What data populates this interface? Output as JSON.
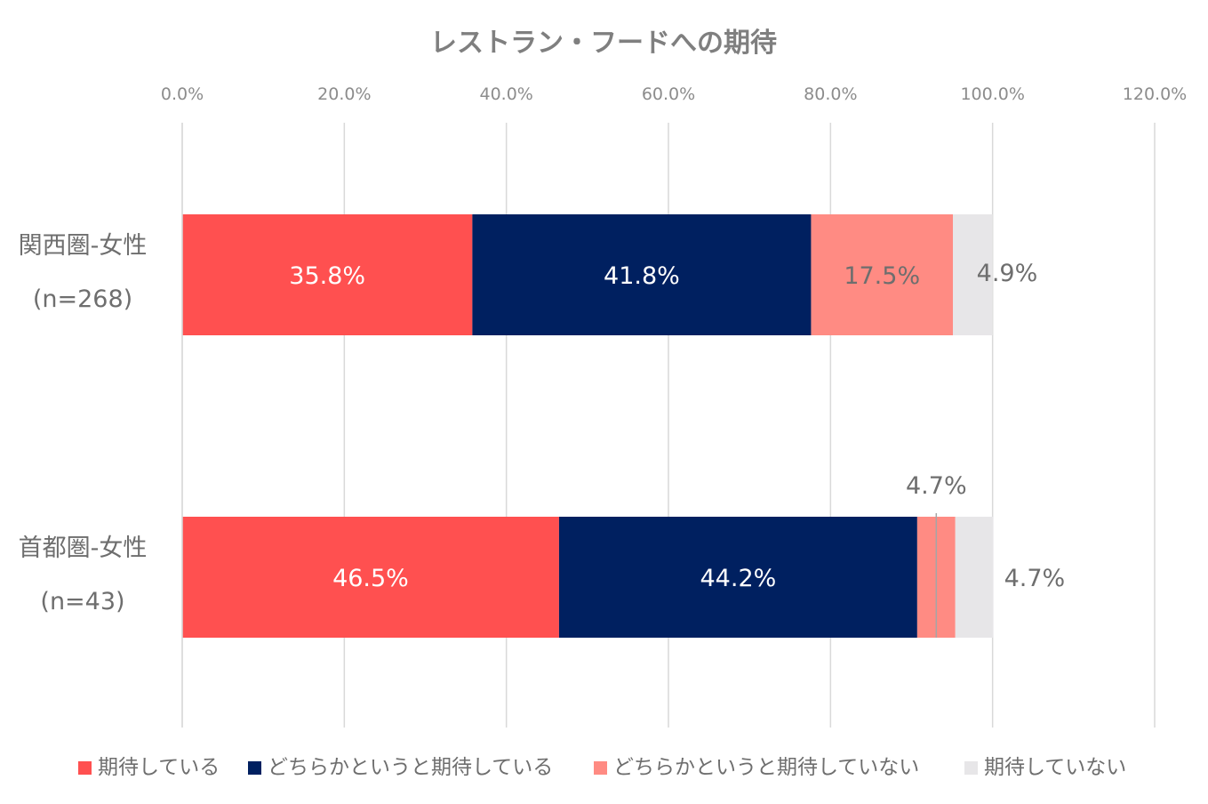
{
  "chart_data": {
    "type": "bar",
    "orientation": "horizontal",
    "stacked": true,
    "title": "レストラン・フードへの期待",
    "xlim": [
      0,
      120
    ],
    "x_ticks": [
      "0.0%",
      "20.0%",
      "40.0%",
      "60.0%",
      "80.0%",
      "100.0%",
      "120.0%"
    ],
    "grid": true,
    "legend_position": "bottom",
    "categories": [
      {
        "line1": "関西圏-女性",
        "line2": "(n=268)"
      },
      {
        "line1": "首都圏-女性",
        "line2": "(n=43)"
      }
    ],
    "series": [
      {
        "name": "期待している",
        "color": "#ff5050",
        "label_color": "#ffffff",
        "values": [
          35.8,
          46.5
        ],
        "labels": [
          "35.8%",
          "46.5%"
        ]
      },
      {
        "name": "どちらかというと期待している",
        "color": "#002060",
        "label_color": "#ffffff",
        "values": [
          41.8,
          44.2
        ],
        "labels": [
          "41.8%",
          "44.2%"
        ]
      },
      {
        "name": "どちらかというと期待していない",
        "color": "#ff8b83",
        "label_color": "#6e6e6e",
        "values": [
          17.5,
          4.7
        ],
        "labels": [
          "17.5%",
          "4.7%"
        ]
      },
      {
        "name": "期待していない",
        "color": "#e7e6e8",
        "label_color": "#6e6e6e",
        "values": [
          4.9,
          4.7
        ],
        "labels": [
          "4.9%",
          "4.7%"
        ]
      }
    ]
  }
}
